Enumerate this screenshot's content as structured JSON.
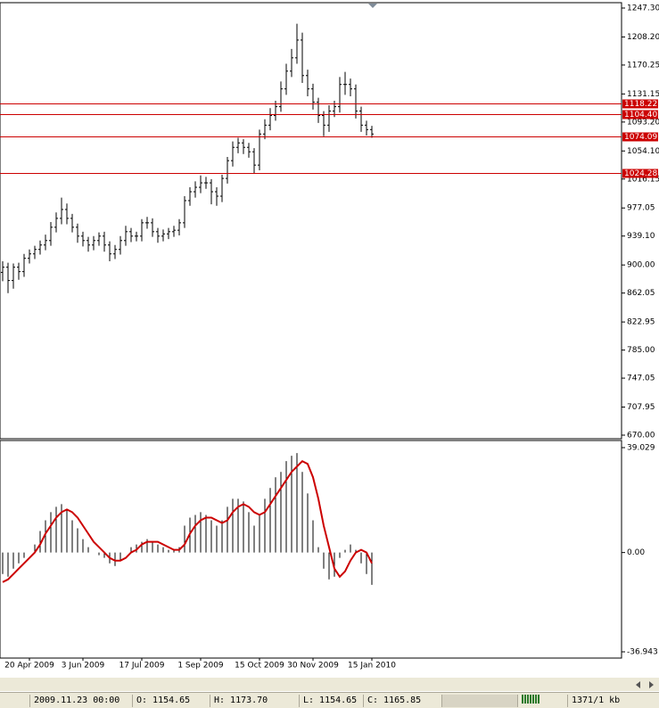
{
  "chart_data": [
    {
      "type": "ohlc",
      "color": "#000000",
      "level_color": "#cc0000",
      "categories": [
        null,
        null,
        null,
        null,
        null,
        "20 Apr 2009",
        null,
        null,
        null,
        null,
        null,
        null,
        null,
        null,
        null,
        "3 Jun 2009",
        null,
        null,
        null,
        null,
        null,
        null,
        null,
        null,
        null,
        null,
        "17 Jul 2009",
        null,
        null,
        null,
        null,
        null,
        null,
        null,
        null,
        null,
        null,
        "1 Sep 2009",
        null,
        null,
        null,
        null,
        null,
        null,
        null,
        null,
        null,
        null,
        "15 Oct 2009",
        null,
        null,
        null,
        null,
        null,
        null,
        null,
        null,
        null,
        "30 Nov 2009",
        null,
        null,
        null,
        null,
        null,
        null,
        null,
        null,
        null,
        null,
        "15 Jan 2010"
      ],
      "open": [
        890,
        897,
        879,
        897,
        891,
        909,
        915,
        921,
        927,
        933,
        951,
        963,
        975,
        963,
        951,
        939,
        933,
        927,
        933,
        939,
        927,
        915,
        921,
        933,
        945,
        939,
        939,
        957,
        957,
        945,
        939,
        942,
        945,
        947,
        957,
        987,
        999,
        1005,
        1011,
        1011,
        999,
        993,
        1017,
        1041,
        1059,
        1065,
        1059,
        1053,
        1035,
        1077,
        1089,
        1102,
        1114,
        1138,
        1162,
        1180,
        1204,
        1156,
        1138,
        1120,
        1102,
        1089,
        1108,
        1114,
        1144,
        1144,
        1138,
        1108,
        1089,
        1083
      ],
      "high": [
        905,
        903,
        902,
        903,
        915,
        921,
        926,
        933,
        941,
        958,
        971,
        991,
        983,
        969,
        956,
        945,
        938,
        939,
        944,
        945,
        932,
        927,
        939,
        953,
        950,
        945,
        962,
        965,
        963,
        950,
        948,
        950,
        953,
        962,
        993,
        1005,
        1013,
        1021,
        1019,
        1016,
        1005,
        1022,
        1046,
        1067,
        1072,
        1070,
        1065,
        1058,
        1083,
        1097,
        1112,
        1122,
        1148,
        1172,
        1192,
        1226,
        1214,
        1164,
        1145,
        1126,
        1108,
        1116,
        1122,
        1154,
        1161,
        1152,
        1144,
        1114,
        1095,
        1088
      ],
      "low": [
        878,
        862,
        868,
        880,
        884,
        902,
        908,
        914,
        920,
        926,
        944,
        955,
        955,
        944,
        930,
        925,
        918,
        920,
        926,
        918,
        905,
        908,
        914,
        926,
        931,
        932,
        932,
        949,
        938,
        930,
        932,
        935,
        938,
        940,
        950,
        980,
        991,
        997,
        1003,
        982,
        980,
        985,
        1010,
        1033,
        1051,
        1050,
        1045,
        1024,
        1028,
        1070,
        1082,
        1095,
        1107,
        1130,
        1154,
        1172,
        1146,
        1128,
        1110,
        1092,
        1074,
        1080,
        1100,
        1106,
        1130,
        1128,
        1098,
        1080,
        1075,
        1072
      ],
      "close": [
        897,
        879,
        897,
        891,
        909,
        915,
        921,
        927,
        933,
        951,
        963,
        975,
        963,
        951,
        939,
        933,
        927,
        933,
        939,
        927,
        915,
        921,
        933,
        945,
        939,
        939,
        957,
        957,
        945,
        939,
        942,
        945,
        947,
        957,
        987,
        999,
        1005,
        1011,
        1011,
        999,
        993,
        1017,
        1041,
        1059,
        1065,
        1059,
        1053,
        1035,
        1077,
        1089,
        1102,
        1114,
        1138,
        1162,
        1180,
        1204,
        1156,
        1138,
        1120,
        1102,
        1089,
        1108,
        1114,
        1144,
        1144,
        1138,
        1108,
        1089,
        1083,
        1077
      ],
      "levels": [
        1118.22,
        {
          "value": 1104.4,
          "label": "1104.40"
        },
        1074.09,
        1024.28
      ],
      "ylim": [
        670,
        1247.3
      ],
      "yticks": [
        {
          "value": 1247.3,
          "label": "1247.30"
        },
        {
          "value": 1208.2,
          "label": "1208.20"
        },
        1170.25,
        1131.15,
        {
          "value": 1093.2,
          "label": "1093.20"
        },
        {
          "value": 1054.1,
          "label": "1054.10"
        },
        1016.15,
        977.05,
        {
          "value": 939.1,
          "label": "939.10"
        },
        {
          "value": 900,
          "label": "900.00"
        },
        862.05,
        822.95,
        {
          "value": 785,
          "label": "785.00"
        },
        747.05,
        707.95,
        {
          "value": 670,
          "label": "670.00"
        }
      ]
    },
    {
      "type": "macd",
      "series": [
        {
          "color": "#000000",
          "values": [
            -8,
            -9,
            -6,
            -4,
            -2,
            0,
            3,
            8,
            12,
            15,
            17,
            18,
            16,
            12,
            9,
            5,
            2,
            0,
            -1,
            -2,
            -4,
            -5,
            -3,
            0,
            2,
            3,
            4,
            5,
            4,
            3,
            2,
            1,
            1,
            2,
            10,
            13,
            14,
            15,
            14,
            12,
            10,
            12,
            17,
            20,
            20,
            19,
            15,
            10,
            14,
            20,
            24,
            28,
            30,
            34,
            36,
            37,
            30,
            22,
            12,
            2,
            -6,
            -10,
            -9,
            -2,
            1,
            3,
            1,
            -4,
            -8,
            -12
          ]
        },
        {
          "color": "#cc0000",
          "values": [
            -11,
            -10,
            -8,
            -6,
            -4,
            -2,
            0,
            3,
            7,
            10,
            13,
            15,
            16,
            15,
            13,
            10,
            7,
            4,
            2,
            0,
            -2,
            -3,
            -3,
            -2,
            0,
            1,
            3,
            4,
            4,
            4,
            3,
            2,
            1,
            1,
            3,
            7,
            10,
            12,
            13,
            13,
            12,
            11,
            12,
            15,
            17,
            18,
            17,
            15,
            14,
            15,
            18,
            21,
            24,
            27,
            30,
            32,
            34,
            33,
            28,
            20,
            10,
            2,
            -6,
            -9,
            -7,
            -3,
            0,
            1,
            0,
            -4
          ]
        }
      ],
      "ylim": [
        -36.943,
        39.029
      ],
      "yticks": [
        39.029,
        {
          "value": 0,
          "label": "0.00"
        },
        -36.943
      ]
    }
  ],
  "status_bar": {
    "time": "2009.11.23 00:00",
    "open": "O: 1154.65",
    "high": "H: 1173.70",
    "low": "L: 1154.65",
    "close": "C: 1165.85",
    "traffic": "1371/1 kb"
  }
}
